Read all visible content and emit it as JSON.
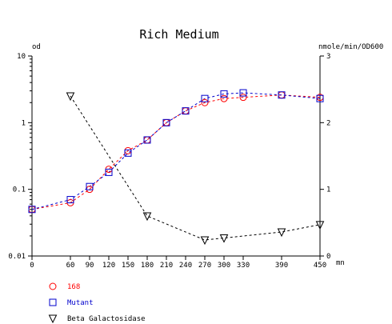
{
  "chart_data": {
    "type": "line",
    "title": "Rich Medium",
    "ylabel": "od",
    "y2label": "nmole/min/OD600",
    "xlabel": "mn",
    "x_ticks": [
      0,
      60,
      90,
      120,
      150,
      180,
      210,
      240,
      270,
      300,
      330,
      390,
      450
    ],
    "xlim": [
      0,
      450
    ],
    "y_scale": "log",
    "ylim": [
      0.01,
      10
    ],
    "y_ticks": [
      "0.01",
      "0.1",
      "1",
      "10"
    ],
    "y2lim": [
      0,
      3
    ],
    "y2_ticks": [
      "0",
      "1",
      "2",
      "3"
    ],
    "grid": false,
    "legend_position": "bottom-left",
    "series": [
      {
        "name": "168",
        "axis": "left",
        "color": "#ff0000",
        "marker": "circle",
        "x": [
          0,
          60,
          90,
          120,
          150,
          180,
          210,
          240,
          270,
          300,
          330,
          390,
          450
        ],
        "y": [
          0.05,
          0.063,
          0.1,
          0.2,
          0.38,
          0.55,
          1.0,
          1.5,
          2.0,
          2.3,
          2.4,
          2.6,
          2.4
        ]
      },
      {
        "name": "Mutant",
        "axis": "left",
        "color": "#0000cc",
        "marker": "square",
        "x": [
          0,
          60,
          90,
          120,
          150,
          180,
          210,
          240,
          270,
          300,
          330,
          390,
          450
        ],
        "y": [
          0.05,
          0.07,
          0.11,
          0.18,
          0.35,
          0.55,
          1.0,
          1.5,
          2.3,
          2.7,
          2.8,
          2.6,
          2.3
        ]
      },
      {
        "name": "Beta Galactosidase",
        "axis": "right",
        "color": "#000000",
        "marker": "triangle-down",
        "x": [
          60,
          180,
          270,
          300,
          390,
          450
        ],
        "y": [
          2.4,
          0.6,
          0.24,
          0.27,
          0.36,
          0.47
        ]
      }
    ]
  }
}
